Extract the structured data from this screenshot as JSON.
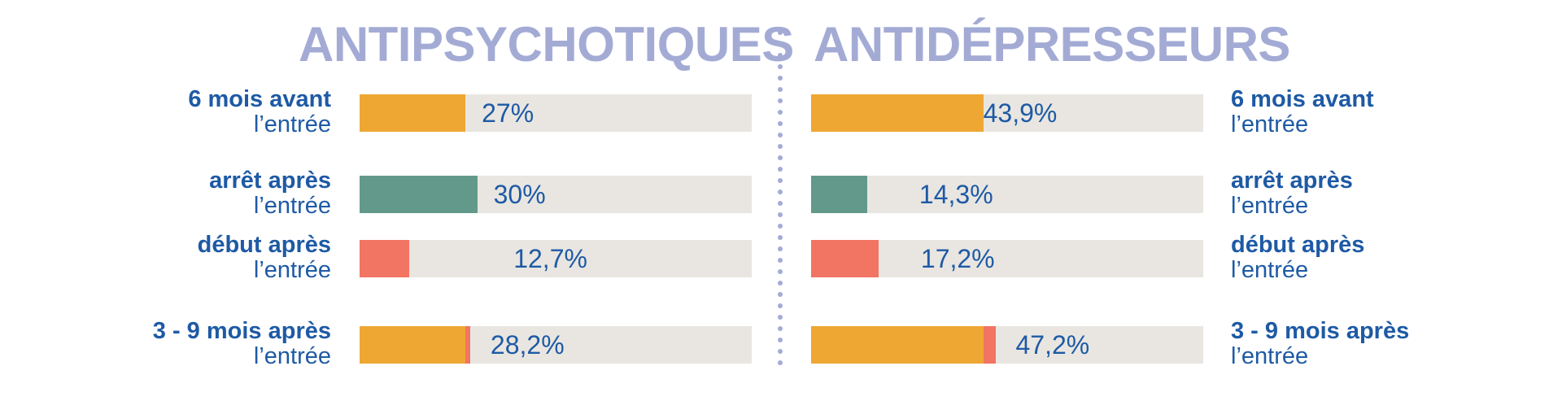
{
  "colors": {
    "title": "#a3abd5",
    "label": "#1e5aa5",
    "track": "#e9e6e1",
    "divider": "#a3abd5",
    "series": {
      "avant": "#eea733",
      "arret": "#62998a",
      "debut": "#f27462"
    }
  },
  "chart_data": [
    {
      "type": "bar",
      "title": "ANTIPSYCHOTIQUES",
      "label_side": "left",
      "xlim": [
        0,
        100
      ],
      "rows": [
        {
          "label_line1": "6 mois avant",
          "label_line2": "l’entrée",
          "value_text": "27%",
          "segments": [
            {
              "color": "avant",
              "value": 27.0
            }
          ]
        },
        {
          "label_line1": "arrêt après",
          "label_line2": "l’entrée",
          "value_text": "30%",
          "segments": [
            {
              "color": "arret",
              "value": 30.0
            }
          ]
        },
        {
          "label_line1": "début après",
          "label_line2": "l’entrée",
          "value_text": "12,7%",
          "segments": [
            {
              "color": "debut",
              "value": 12.7
            }
          ]
        },
        {
          "label_line1": "3 - 9  mois après",
          "label_line2": "l’entrée",
          "value_text": "28,2%",
          "segments": [
            {
              "color": "avant",
              "value": 27.0
            },
            {
              "color": "debut",
              "value": 1.2
            }
          ]
        }
      ]
    },
    {
      "type": "bar",
      "title": "ANTIDÉPRESSEURS",
      "label_side": "right",
      "xlim": [
        0,
        100
      ],
      "rows": [
        {
          "label_line1": "6 mois avant",
          "label_line2": "l’entrée",
          "value_text": "43,9%",
          "segments": [
            {
              "color": "avant",
              "value": 43.9
            }
          ]
        },
        {
          "label_line1": "arrêt après",
          "label_line2": "l’entrée",
          "value_text": "14,3%",
          "segments": [
            {
              "color": "arret",
              "value": 14.3
            }
          ]
        },
        {
          "label_line1": "début après",
          "label_line2": "l’entrée",
          "value_text": "17,2%",
          "segments": [
            {
              "color": "debut",
              "value": 17.2
            }
          ]
        },
        {
          "label_line1": "3 - 9  mois après",
          "label_line2": "l’entrée",
          "value_text": "47,2%",
          "segments": [
            {
              "color": "avant",
              "value": 43.9
            },
            {
              "color": "debut",
              "value": 3.3
            }
          ]
        }
      ]
    }
  ]
}
